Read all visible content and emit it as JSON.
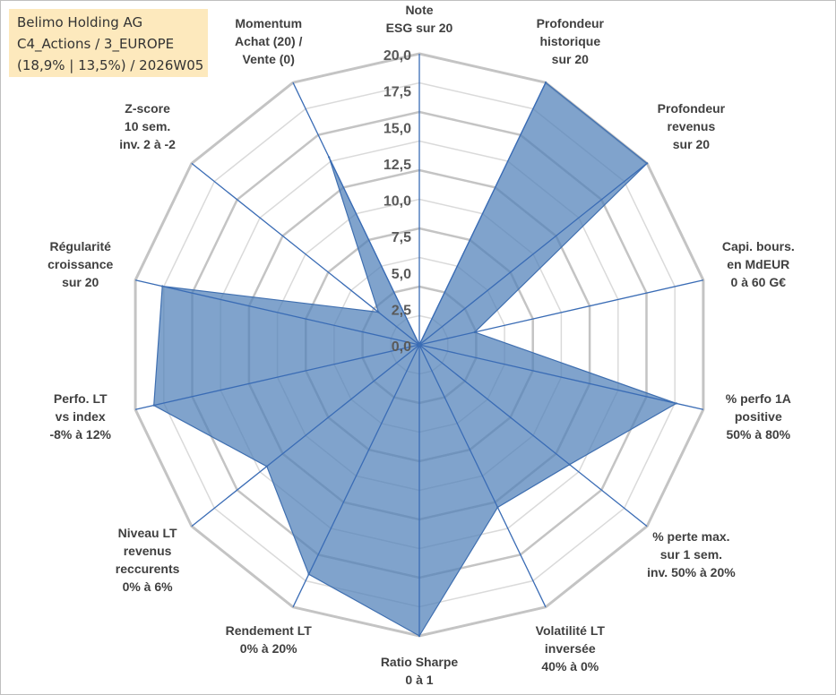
{
  "title_box": {
    "line1": "Belimo Holding AG",
    "line2": "C4_Actions / 3_EUROPE",
    "line3": "(18,9% | 13,5%) / 2026W05"
  },
  "colors": {
    "fill": "#4f7fb8",
    "stroke": "#3f6fb0",
    "grid_major": "#c4c4c4",
    "grid_minor": "#dadada",
    "spoke": "#3a6cb5",
    "title_bg": "#fde9bd"
  },
  "chart_data": {
    "type": "radar",
    "title": "",
    "rmax": 20,
    "ticks": [
      "0,0",
      "2,5",
      "5,0",
      "7,5",
      "10,0",
      "12,5",
      "15,0",
      "17,5",
      "20,0"
    ],
    "axes": [
      {
        "lines": [
          "Note",
          "ESG sur 20"
        ]
      },
      {
        "lines": [
          "Profondeur",
          "historique",
          "sur 20"
        ]
      },
      {
        "lines": [
          "Profondeur",
          "revenus",
          "sur 20"
        ]
      },
      {
        "lines": [
          "Capi. bours.",
          "en MdEUR",
          "0 à 60 G€"
        ]
      },
      {
        "lines": [
          "% perfo 1A",
          "positive",
          "50% à 80%"
        ]
      },
      {
        "lines": [
          "% perte max.",
          "sur 1 sem.",
          "inv. 50% à 20%"
        ]
      },
      {
        "lines": [
          "Volatilité LT",
          "inversée",
          "40% à 0%"
        ]
      },
      {
        "lines": [
          "Ratio Sharpe",
          "0 à 1"
        ]
      },
      {
        "lines": [
          "Rendement LT",
          "0% à 20%"
        ]
      },
      {
        "lines": [
          "Niveau LT",
          "revenus",
          "reccurents",
          "0% à 6%"
        ]
      },
      {
        "lines": [
          "Perfo. LT",
          "vs index",
          "-8% à 12%"
        ]
      },
      {
        "lines": [
          "Régularité",
          "croissance",
          "sur 20"
        ]
      },
      {
        "lines": [
          "Z-score",
          "10 sem.",
          "inv. 2 à -2"
        ]
      },
      {
        "lines": [
          "Momentum",
          "Achat (20) /",
          "Vente (0)"
        ]
      }
    ],
    "series": [
      {
        "name": "Belimo Holding AG",
        "values": [
          0,
          20,
          20,
          3.9,
          18.1,
          13.2,
          12.4,
          20,
          17.5,
          13.4,
          18.7,
          18.1,
          3.6,
          14.3
        ]
      }
    ]
  }
}
